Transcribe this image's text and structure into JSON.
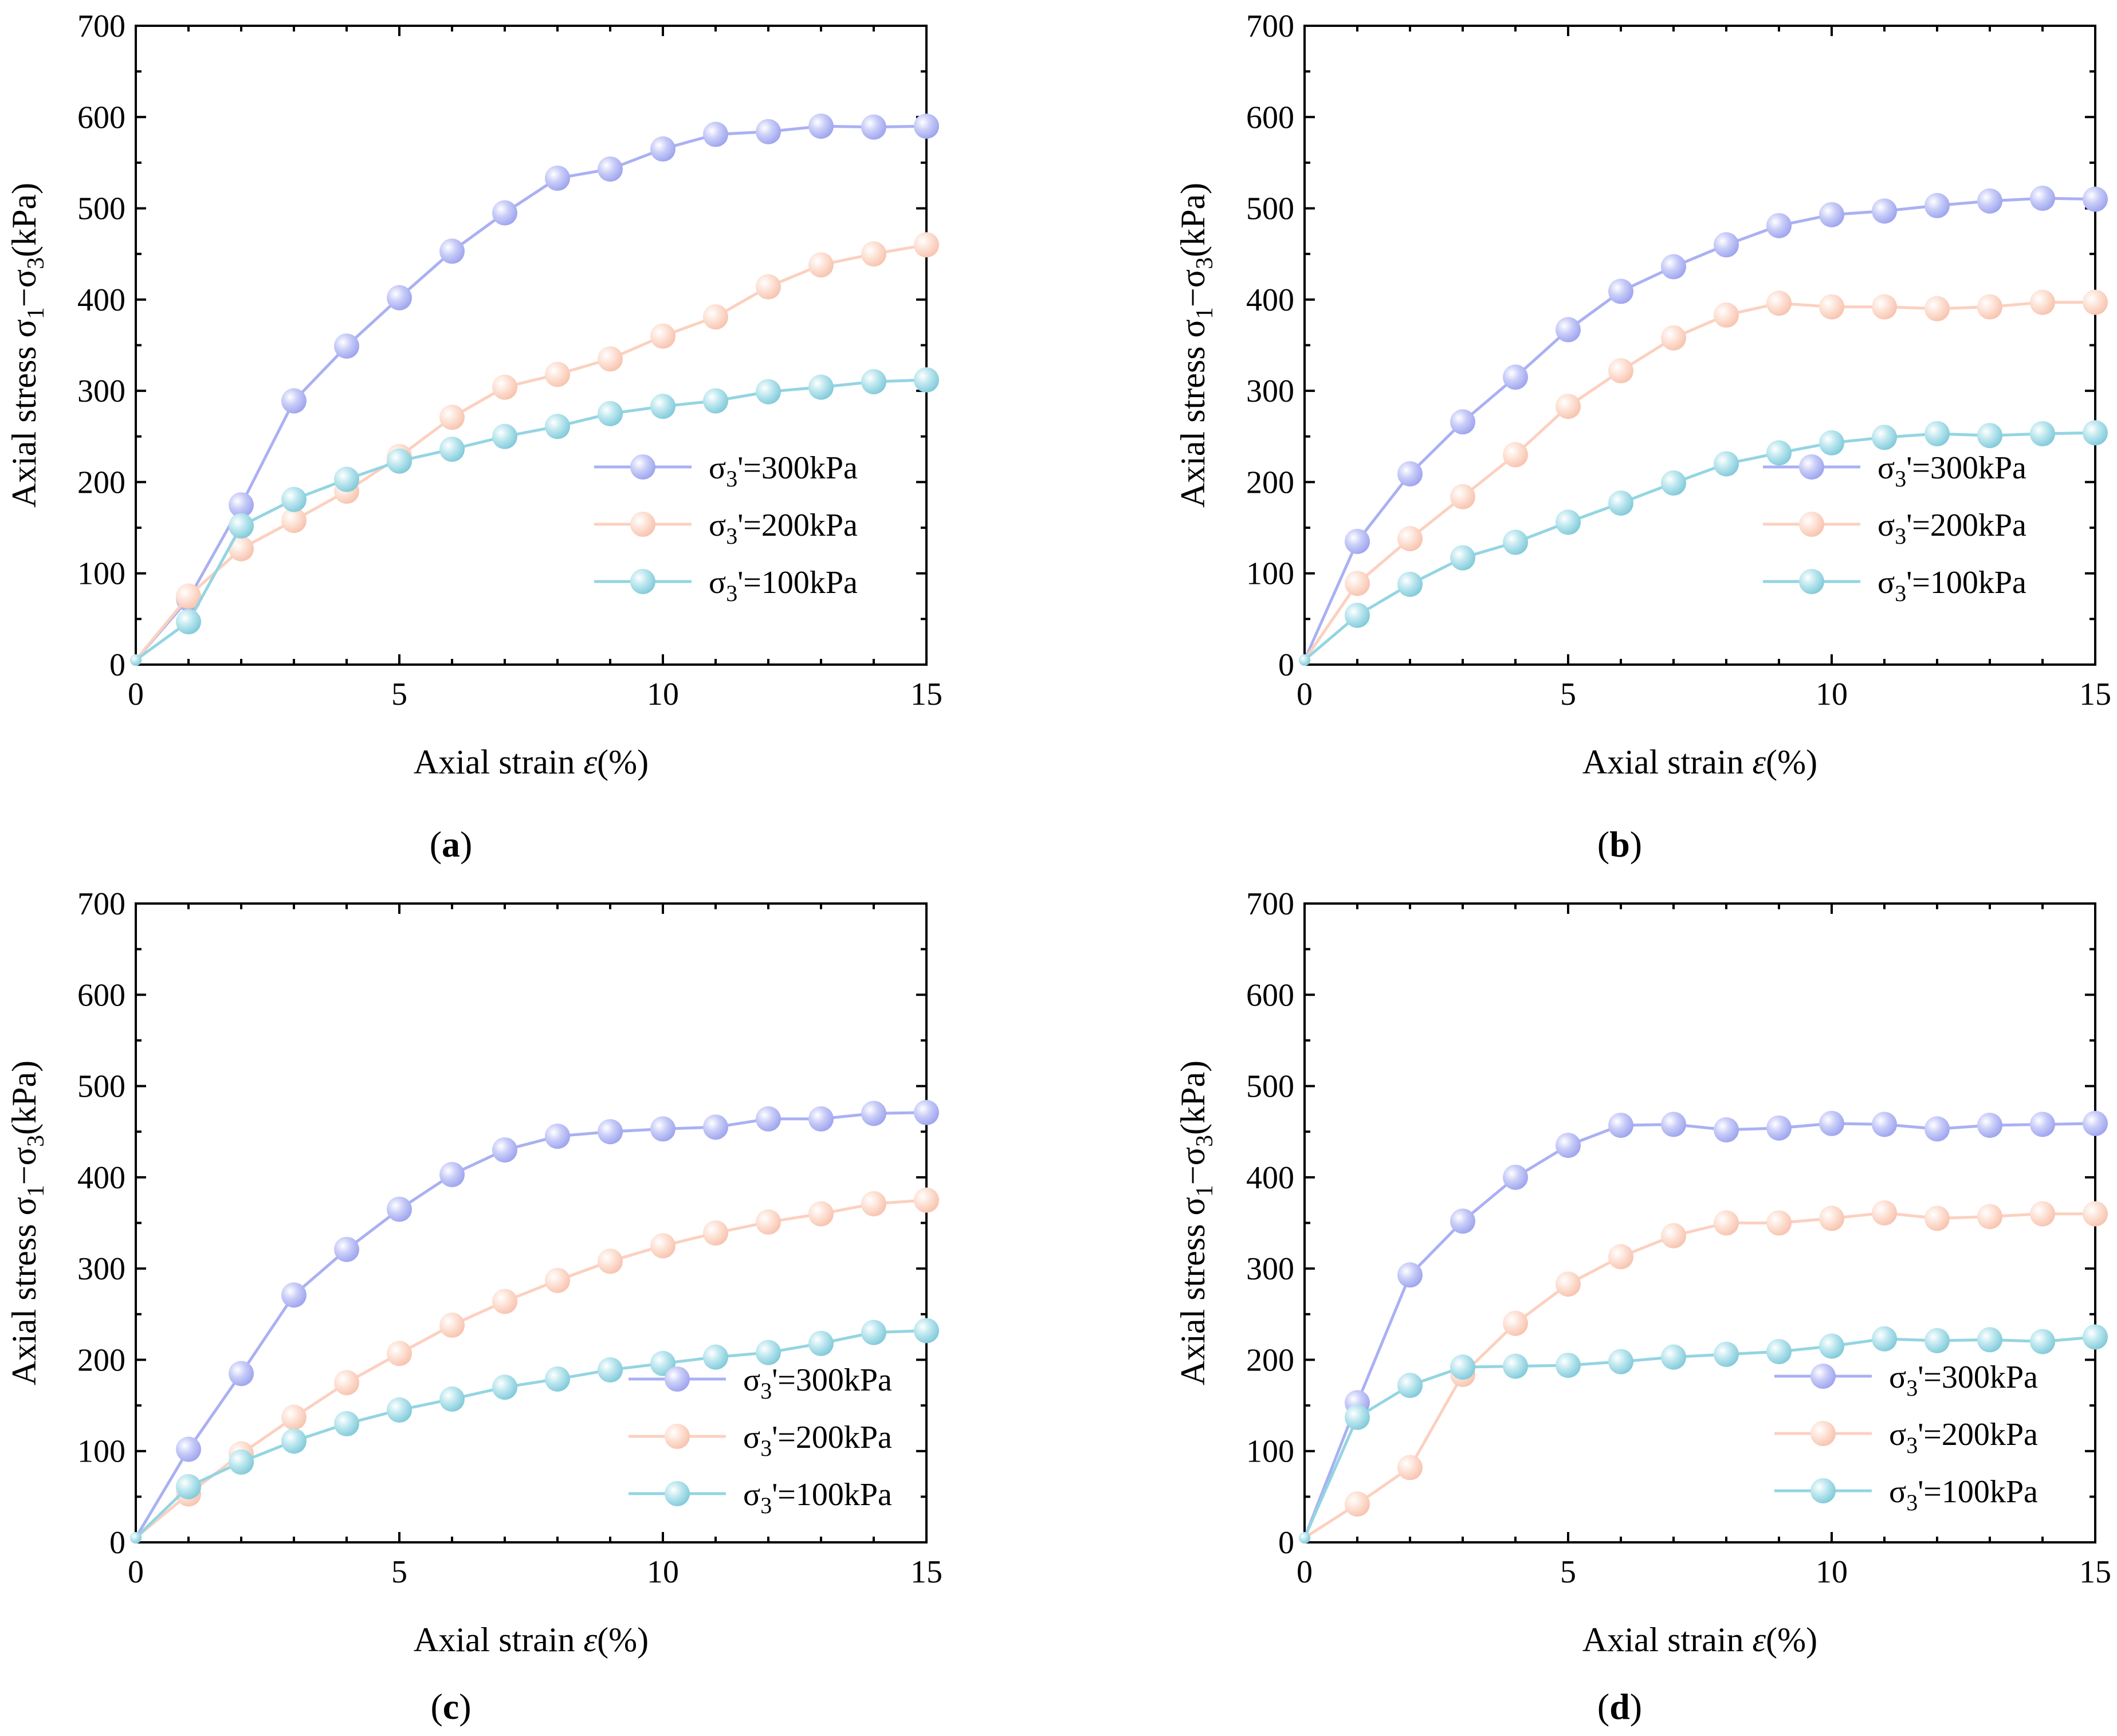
{
  "colors": {
    "s300": "#aab0f2",
    "s200": "#fcd0bf",
    "s100": "#93d5e2"
  },
  "chart_data": [
    {
      "type": "line",
      "panel_label": "(a)",
      "panel_letter": "a",
      "xlabel": "Axial strain",
      "xlabel_symbol": "ε",
      "xlabel_unit": "(%)",
      "ylabel": "Axial stress σ1−σ3(kPa)",
      "xlim": [
        0,
        15
      ],
      "ylim": [
        0,
        700
      ],
      "xticks": [
        0,
        5,
        10,
        15
      ],
      "yticks": [
        0,
        100,
        200,
        300,
        400,
        500,
        600,
        700
      ],
      "legend_position": "middle-right",
      "x": [
        0,
        1,
        2,
        3,
        4,
        5,
        6,
        7,
        8,
        9,
        10,
        11,
        12,
        13,
        14,
        15
      ],
      "series": [
        {
          "name": "σ3'=300kPa",
          "values": [
            5,
            72,
            175,
            289,
            349,
            402,
            453,
            495,
            533,
            543,
            565,
            581,
            584,
            590,
            589,
            590
          ]
        },
        {
          "name": "σ3'=200kPa",
          "values": [
            5,
            75,
            127,
            158,
            190,
            228,
            271,
            304,
            318,
            335,
            360,
            381,
            414,
            438,
            450,
            460
          ]
        },
        {
          "name": "σ3'=100kPa",
          "values": [
            5,
            47,
            152,
            181,
            203,
            223,
            236,
            250,
            261,
            275,
            283,
            289,
            299,
            304,
            310,
            312
          ]
        }
      ]
    },
    {
      "type": "line",
      "panel_label": "(b)",
      "panel_letter": "b",
      "xlabel": "Axial strain",
      "xlabel_symbol": "ε",
      "xlabel_unit": "(%)",
      "ylabel": "Axial stress σ1−σ3(kPa)",
      "xlim": [
        0,
        15
      ],
      "ylim": [
        0,
        700
      ],
      "xticks": [
        0,
        5,
        10,
        15
      ],
      "yticks": [
        0,
        100,
        200,
        300,
        400,
        500,
        600,
        700
      ],
      "legend_position": "middle-right",
      "x": [
        0,
        1,
        2,
        3,
        4,
        5,
        6,
        7,
        8,
        9,
        10,
        11,
        12,
        13,
        14,
        15
      ],
      "series": [
        {
          "name": "σ3'=300kPa",
          "values": [
            5,
            135,
            209,
            266,
            315,
            367,
            409,
            436,
            460,
            481,
            493,
            497,
            503,
            508,
            511,
            510
          ]
        },
        {
          "name": "σ3'=200kPa",
          "values": [
            5,
            89,
            138,
            184,
            230,
            283,
            322,
            358,
            383,
            396,
            392,
            392,
            390,
            392,
            397,
            397
          ]
        },
        {
          "name": "σ3'=100kPa",
          "values": [
            5,
            54,
            88,
            117,
            134,
            156,
            177,
            199,
            220,
            232,
            243,
            249,
            253,
            251,
            253,
            254
          ]
        }
      ]
    },
    {
      "type": "line",
      "panel_label": "(c)",
      "panel_letter": "c",
      "xlabel": "Axial strain",
      "xlabel_symbol": "ε",
      "xlabel_unit": "(%)",
      "ylabel": "Axial stress σ1−σ3(kPa)",
      "xlim": [
        0,
        15
      ],
      "ylim": [
        0,
        700
      ],
      "xticks": [
        0,
        5,
        10,
        15
      ],
      "yticks": [
        0,
        100,
        200,
        300,
        400,
        500,
        600,
        700
      ],
      "legend_position": "bottom-right",
      "x": [
        0,
        1,
        2,
        3,
        4,
        5,
        6,
        7,
        8,
        9,
        10,
        11,
        12,
        13,
        14,
        15
      ],
      "series": [
        {
          "name": "σ3'=300kPa",
          "values": [
            5,
            102,
            185,
            271,
            321,
            365,
            403,
            430,
            445,
            450,
            453,
            455,
            464,
            464,
            470,
            471
          ]
        },
        {
          "name": "σ3'=200kPa",
          "values": [
            5,
            53,
            97,
            137,
            175,
            207,
            238,
            264,
            287,
            308,
            325,
            339,
            351,
            360,
            371,
            375
          ]
        },
        {
          "name": "σ3'=100kPa",
          "values": [
            5,
            61,
            88,
            111,
            130,
            145,
            157,
            170,
            179,
            189,
            196,
            203,
            208,
            218,
            230,
            232
          ]
        }
      ]
    },
    {
      "type": "line",
      "panel_label": "(d)",
      "panel_letter": "d",
      "xlabel": "Axial strain",
      "xlabel_symbol": "ε",
      "xlabel_unit": "(%)",
      "ylabel": "Axial stress σ1−σ3(kPa)",
      "xlim": [
        0,
        15
      ],
      "ylim": [
        0,
        700
      ],
      "xticks": [
        0,
        5,
        10,
        15
      ],
      "yticks": [
        0,
        100,
        200,
        300,
        400,
        500,
        600,
        700
      ],
      "legend_position": "bottom-right",
      "x": [
        0,
        1,
        2,
        3,
        4,
        5,
        6,
        7,
        8,
        9,
        10,
        11,
        12,
        13,
        14,
        15
      ],
      "series": [
        {
          "name": "σ3'=300kPa",
          "values": [
            5,
            153,
            293,
            352,
            400,
            435,
            457,
            458,
            452,
            454,
            459,
            458,
            453,
            457,
            458,
            459
          ]
        },
        {
          "name": "σ3'=200kPa",
          "values": [
            5,
            42,
            82,
            184,
            240,
            283,
            313,
            336,
            350,
            350,
            355,
            361,
            355,
            357,
            360,
            360
          ]
        },
        {
          "name": "σ3'=100kPa",
          "values": [
            5,
            137,
            172,
            192,
            193,
            194,
            198,
            203,
            206,
            209,
            215,
            223,
            221,
            222,
            220,
            225
          ]
        }
      ]
    }
  ]
}
